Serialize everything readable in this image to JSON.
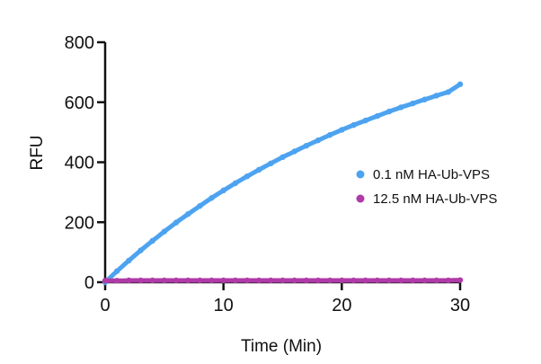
{
  "chart_data": {
    "type": "scatter",
    "title": "",
    "xlabel": "Time (Min)",
    "ylabel": "RFU",
    "xlim": [
      0,
      30
    ],
    "ylim": [
      0,
      800
    ],
    "x_ticks": [
      0,
      10,
      20,
      30
    ],
    "y_ticks": [
      0,
      200,
      400,
      600,
      800
    ],
    "grid": false,
    "legend_position": "right",
    "series": [
      {
        "name": "0.1 nM HA-Ub-VPS",
        "color": "#4da3f0",
        "x": [
          0,
          1,
          2,
          3,
          4,
          5,
          6,
          7,
          8,
          9,
          10,
          11,
          12,
          13,
          14,
          15,
          16,
          17,
          18,
          19,
          20,
          21,
          22,
          23,
          24,
          25,
          26,
          27,
          28,
          29,
          30
        ],
        "y": [
          0,
          37,
          72,
          106,
          138,
          169,
          199,
          227,
          254,
          281,
          306,
          330,
          353,
          375,
          396,
          417,
          436,
          455,
          473,
          491,
          508,
          524,
          539,
          554,
          569,
          583,
          596,
          609,
          622,
          634,
          660
        ]
      },
      {
        "name": "12.5 nM HA-Ub-VPS",
        "color": "#b03aa8",
        "x": [
          0,
          1,
          2,
          3,
          4,
          5,
          6,
          7,
          8,
          9,
          10,
          11,
          12,
          13,
          14,
          15,
          16,
          17,
          18,
          19,
          20,
          21,
          22,
          23,
          24,
          25,
          26,
          27,
          28,
          29,
          30
        ],
        "y": [
          5,
          5,
          6,
          6,
          6,
          6,
          6,
          6,
          6,
          6,
          6,
          6,
          6,
          6,
          6,
          6,
          6,
          6,
          6,
          6,
          6,
          6,
          6,
          6,
          6,
          6,
          6,
          6,
          6,
          6,
          7
        ]
      }
    ]
  }
}
